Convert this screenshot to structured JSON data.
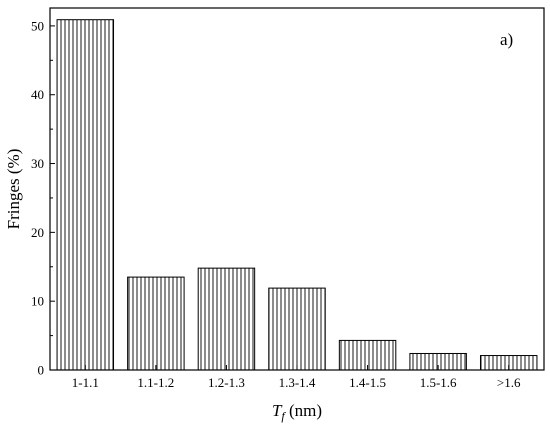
{
  "chart_data": {
    "type": "bar",
    "title": "",
    "panel_label": "a)",
    "xlabel": {
      "symbol": "T",
      "subscript": "f",
      "unit": "(nm)"
    },
    "ylabel": "Fringes (%)",
    "categories": [
      "1-1.1",
      "1.1-1.2",
      "1.2-1.3",
      "1.3-1.4",
      "1.4-1.5",
      "1.5-1.6",
      ">1.6"
    ],
    "values": [
      50.9,
      13.5,
      14.8,
      11.9,
      4.3,
      2.4,
      2.1
    ],
    "ylim": [
      0,
      52.6
    ],
    "yticks": [
      0,
      10,
      20,
      30,
      40,
      50
    ],
    "grid": false,
    "bar_fill": "vertical-hatch",
    "colors": {
      "bar_stroke": "#000000",
      "hatch": "#000000",
      "background": "#ffffff"
    }
  }
}
